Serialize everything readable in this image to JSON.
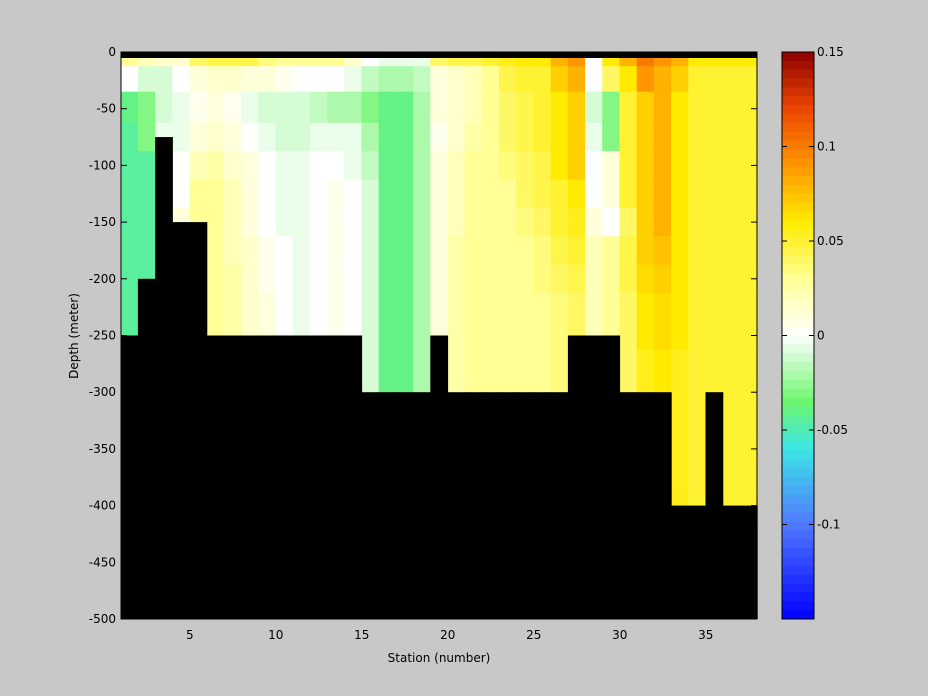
{
  "chart_data": {
    "type": "heatmap",
    "title": "",
    "xlabel": "Station (number)",
    "ylabel": "Depth (meter)",
    "xlim": [
      1,
      38
    ],
    "ylim": [
      -500,
      0
    ],
    "x_ticks": [
      5,
      10,
      15,
      20,
      25,
      30,
      35
    ],
    "y_ticks": [
      0,
      -50,
      -100,
      -150,
      -200,
      -250,
      -300,
      -350,
      -400,
      -450,
      -500
    ],
    "colorbar": {
      "range": [
        -0.15,
        0.15
      ],
      "ticks": [
        0.15,
        0.1,
        0.05,
        0,
        -0.05,
        -0.1
      ],
      "tick_labels": [
        "0.15",
        "0.1",
        "0.05",
        "0",
        "-0.05",
        "-0.1"
      ],
      "colormap": "jet-with-white-center"
    },
    "mask_color": "#000000",
    "depth_levels": [
      -5,
      -20,
      -50,
      -75,
      -100,
      -125,
      -150,
      -175,
      -200,
      -225,
      -250,
      -275,
      -300,
      -325,
      -350,
      -375,
      -400
    ],
    "stations": [
      1,
      2,
      3,
      4,
      5,
      6,
      7,
      8,
      9,
      10,
      11,
      12,
      13,
      14,
      15,
      16,
      17,
      18,
      19,
      20,
      21,
      22,
      23,
      24,
      25,
      26,
      27,
      28,
      29,
      30,
      31,
      32,
      33,
      34,
      35,
      36,
      37
    ],
    "bottom_depth": [
      -250,
      -200,
      -75,
      -150,
      -150,
      -250,
      -250,
      -250,
      -250,
      -250,
      -250,
      -250,
      -250,
      -250,
      -300,
      -300,
      -300,
      -300,
      -250,
      -300,
      -300,
      -300,
      -300,
      -300,
      -300,
      -300,
      -250,
      -250,
      -250,
      -300,
      -300,
      -300,
      -400,
      -400,
      -300,
      -400,
      -400
    ],
    "values": [
      [
        0.03,
        0.02,
        0.015,
        0.015,
        0.04,
        0.045,
        0.045,
        0.045,
        0.035,
        0.03,
        0.03,
        0.03,
        0.03,
        0.015,
        0.0,
        -0.005,
        -0.005,
        -0.005,
        0.04,
        0.045,
        0.045,
        0.05,
        0.055,
        0.06,
        0.06,
        0.08,
        0.09,
        0.0,
        0.06,
        0.08,
        0.1,
        0.09,
        0.08,
        0.06,
        0.06,
        0.06,
        0.06
      ],
      [
        0.0,
        -0.01,
        -0.01,
        0.0,
        0.01,
        0.015,
        0.015,
        0.01,
        0.01,
        0.005,
        0.0,
        0.0,
        0.0,
        -0.005,
        -0.015,
        -0.02,
        -0.02,
        -0.015,
        0.01,
        0.015,
        0.02,
        0.03,
        0.045,
        0.05,
        0.05,
        0.07,
        0.08,
        0.0,
        0.04,
        0.06,
        0.09,
        0.08,
        0.07,
        0.05,
        0.05,
        0.05,
        0.05
      ],
      [
        -0.04,
        -0.03,
        -0.01,
        -0.005,
        0.005,
        0.01,
        0.005,
        -0.005,
        -0.01,
        -0.01,
        -0.01,
        -0.015,
        -0.02,
        -0.02,
        -0.03,
        -0.04,
        -0.04,
        -0.02,
        0.01,
        0.015,
        0.02,
        0.03,
        0.04,
        0.045,
        0.05,
        0.06,
        0.07,
        -0.01,
        -0.03,
        0.05,
        0.07,
        0.08,
        0.06,
        0.05,
        0.05,
        0.05,
        0.05
      ],
      [
        -0.045,
        -0.03,
        -0.005,
        -0.005,
        0.01,
        0.015,
        0.01,
        0.0,
        -0.005,
        -0.01,
        -0.01,
        -0.005,
        -0.005,
        -0.005,
        -0.02,
        -0.04,
        -0.04,
        -0.02,
        0.005,
        0.015,
        0.025,
        0.03,
        0.04,
        0.045,
        0.05,
        0.06,
        0.07,
        -0.005,
        -0.03,
        0.05,
        0.07,
        0.08,
        0.06,
        0.05,
        0.05,
        0.05,
        0.05
      ],
      [
        -0.045,
        -0.045,
        0.0,
        0.0,
        0.02,
        0.025,
        0.015,
        0.01,
        0.0,
        -0.005,
        -0.005,
        0.0,
        0.0,
        -0.005,
        -0.015,
        -0.04,
        -0.04,
        -0.02,
        0.01,
        0.02,
        0.03,
        0.03,
        0.035,
        0.04,
        0.045,
        0.06,
        0.07,
        0.0,
        0.01,
        0.05,
        0.07,
        0.08,
        0.06,
        0.05,
        0.05,
        0.05,
        0.05
      ],
      [
        -0.045,
        -0.045,
        0.0,
        0.0,
        0.03,
        0.03,
        0.02,
        0.01,
        0.0,
        -0.005,
        -0.005,
        0.0,
        0.005,
        0.0,
        -0.01,
        -0.04,
        -0.04,
        -0.02,
        0.01,
        0.02,
        0.03,
        0.03,
        0.03,
        0.04,
        0.045,
        0.05,
        0.06,
        0.0,
        0.01,
        0.05,
        0.07,
        0.08,
        0.06,
        0.05,
        0.05,
        0.05,
        0.05
      ],
      [
        -0.045,
        -0.045,
        0.0,
        0.01,
        0.03,
        0.03,
        0.02,
        0.01,
        0.0,
        -0.005,
        -0.005,
        0.0,
        0.005,
        0.0,
        -0.01,
        -0.04,
        -0.04,
        -0.02,
        0.01,
        0.02,
        0.03,
        0.03,
        0.03,
        0.035,
        0.04,
        0.05,
        0.055,
        0.01,
        0.0,
        0.04,
        0.07,
        0.08,
        0.06,
        0.05,
        0.05,
        0.05,
        0.05
      ],
      [
        -0.045,
        -0.045,
        0.0,
        0.01,
        0.03,
        0.03,
        0.02,
        0.015,
        0.005,
        0.0,
        -0.005,
        0.0,
        0.005,
        0.0,
        -0.01,
        -0.04,
        -0.04,
        -0.02,
        0.01,
        0.025,
        0.03,
        0.03,
        0.03,
        0.03,
        0.035,
        0.045,
        0.05,
        0.02,
        0.03,
        0.045,
        0.07,
        0.075,
        0.06,
        0.05,
        0.05,
        0.05,
        0.05
      ],
      [
        -0.045,
        -0.045,
        0.0,
        0.01,
        0.03,
        0.03,
        0.025,
        0.015,
        0.005,
        0.0,
        -0.005,
        0.0,
        0.005,
        0.0,
        -0.01,
        -0.04,
        -0.04,
        -0.02,
        0.01,
        0.025,
        0.03,
        0.03,
        0.03,
        0.03,
        0.035,
        0.04,
        0.045,
        0.02,
        0.03,
        0.045,
        0.065,
        0.07,
        0.06,
        0.05,
        0.05,
        0.05,
        0.05
      ],
      [
        -0.045,
        -0.045,
        0.0,
        0.01,
        0.03,
        0.03,
        0.025,
        0.015,
        0.01,
        0.0,
        -0.005,
        0.0,
        0.005,
        0.0,
        -0.01,
        -0.04,
        -0.04,
        -0.02,
        0.01,
        0.025,
        0.03,
        0.03,
        0.03,
        0.03,
        0.03,
        0.035,
        0.04,
        0.02,
        0.03,
        0.04,
        0.06,
        0.065,
        0.06,
        0.05,
        0.05,
        0.05,
        0.05
      ],
      [
        -0.045,
        -0.045,
        0.0,
        0.01,
        0.03,
        0.03,
        0.025,
        0.015,
        0.01,
        0.0,
        -0.005,
        0.0,
        0.005,
        0.0,
        -0.01,
        -0.04,
        -0.04,
        -0.02,
        0.01,
        0.025,
        0.03,
        0.03,
        0.03,
        0.03,
        0.03,
        0.035,
        0.04,
        0.02,
        0.03,
        0.04,
        0.06,
        0.065,
        0.06,
        0.05,
        0.05,
        0.05,
        0.05
      ],
      [
        -0.045,
        -0.045,
        0.0,
        0.01,
        0.03,
        0.03,
        0.025,
        0.015,
        0.01,
        0.0,
        -0.005,
        0.0,
        0.005,
        0.0,
        -0.01,
        -0.04,
        -0.04,
        -0.02,
        0.01,
        0.025,
        0.03,
        0.03,
        0.03,
        0.03,
        0.03,
        0.035,
        0.04,
        0.02,
        0.03,
        0.04,
        0.055,
        0.06,
        0.055,
        0.05,
        0.05,
        0.05,
        0.05
      ],
      [
        -0.045,
        -0.045,
        0.0,
        0.01,
        0.03,
        0.03,
        0.025,
        0.015,
        0.01,
        0.0,
        -0.005,
        0.0,
        0.005,
        0.0,
        -0.01,
        -0.04,
        -0.04,
        -0.02,
        0.01,
        0.025,
        0.03,
        0.03,
        0.03,
        0.03,
        0.03,
        0.035,
        0.04,
        0.02,
        0.03,
        0.04,
        0.055,
        0.06,
        0.055,
        0.05,
        0.05,
        0.05,
        0.05
      ],
      [
        -0.045,
        -0.045,
        0.0,
        0.01,
        0.03,
        0.03,
        0.025,
        0.015,
        0.01,
        0.0,
        -0.005,
        0.0,
        0.005,
        0.0,
        -0.01,
        -0.04,
        -0.04,
        -0.02,
        0.01,
        0.025,
        0.03,
        0.03,
        0.03,
        0.03,
        0.03,
        0.035,
        0.04,
        0.02,
        0.03,
        0.04,
        0.055,
        0.06,
        0.055,
        0.05,
        0.05,
        0.05,
        0.05
      ],
      [
        -0.045,
        -0.045,
        0.0,
        0.01,
        0.03,
        0.03,
        0.025,
        0.015,
        0.01,
        0.0,
        -0.005,
        0.0,
        0.005,
        0.0,
        -0.01,
        -0.04,
        -0.04,
        -0.02,
        0.01,
        0.025,
        0.03,
        0.03,
        0.03,
        0.03,
        0.03,
        0.035,
        0.04,
        0.02,
        0.03,
        0.04,
        0.055,
        0.06,
        0.055,
        0.05,
        0.05,
        0.05,
        0.05
      ],
      [
        -0.045,
        -0.045,
        0.0,
        0.01,
        0.03,
        0.03,
        0.025,
        0.015,
        0.01,
        0.0,
        -0.005,
        0.0,
        0.005,
        0.0,
        -0.01,
        -0.04,
        -0.04,
        -0.02,
        0.01,
        0.025,
        0.03,
        0.03,
        0.03,
        0.03,
        0.03,
        0.035,
        0.04,
        0.02,
        0.03,
        0.04,
        0.055,
        0.06,
        0.055,
        0.05,
        0.05,
        0.05,
        0.05
      ],
      [
        -0.045,
        -0.045,
        0.0,
        0.01,
        0.03,
        0.03,
        0.025,
        0.015,
        0.01,
        0.0,
        -0.005,
        0.0,
        0.005,
        0.0,
        -0.01,
        -0.04,
        -0.04,
        -0.02,
        0.01,
        0.025,
        0.03,
        0.03,
        0.03,
        0.03,
        0.03,
        0.035,
        0.04,
        0.02,
        0.03,
        0.04,
        0.055,
        0.06,
        0.055,
        0.05,
        0.05,
        0.05,
        0.05
      ]
    ]
  }
}
